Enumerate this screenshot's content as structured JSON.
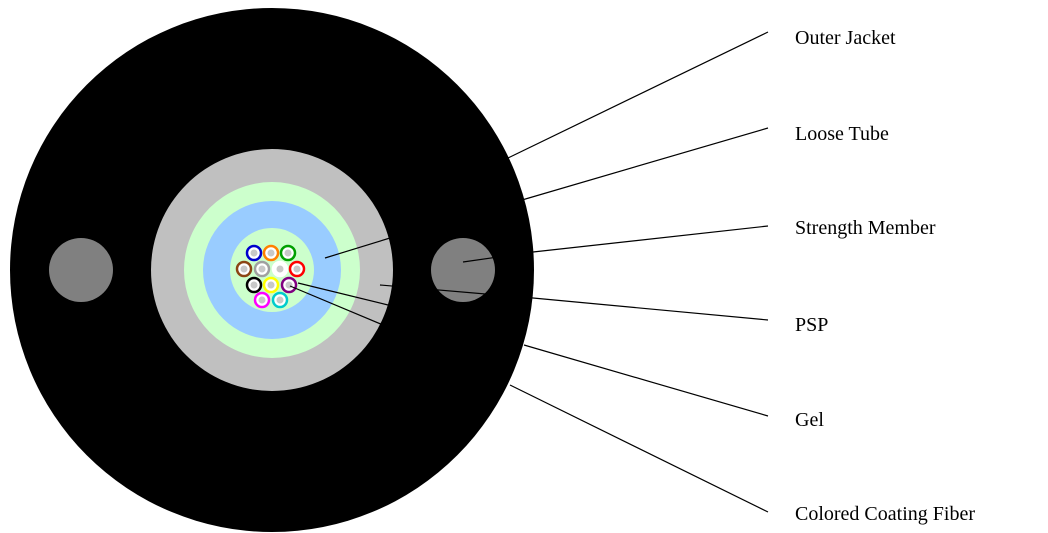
{
  "labels": {
    "outer_jacket": "Outer Jacket",
    "loose_tube": "Loose Tube",
    "strength_member": "Strength Member",
    "psp": "PSP",
    "gel": "Gel",
    "colored_coating_fiber": "Colored Coating Fiber"
  },
  "colors": {
    "outer_jacket": "#000000",
    "strength_member": "#808080",
    "loose_tube_outer": "#c0c0c0",
    "psp_ring": "#ccffcc",
    "gel_ring": "#99ccff",
    "fiber_core_bg": "#ccffcc"
  },
  "fiber_colors": [
    "#0000cc",
    "#ff8000",
    "#00a000",
    "#8b4513",
    "#a0a0a0",
    "#ffffff",
    "#ff0000",
    "#000000",
    "#ffff00",
    "#800080",
    "#ff00ff",
    "#00cccc"
  ]
}
